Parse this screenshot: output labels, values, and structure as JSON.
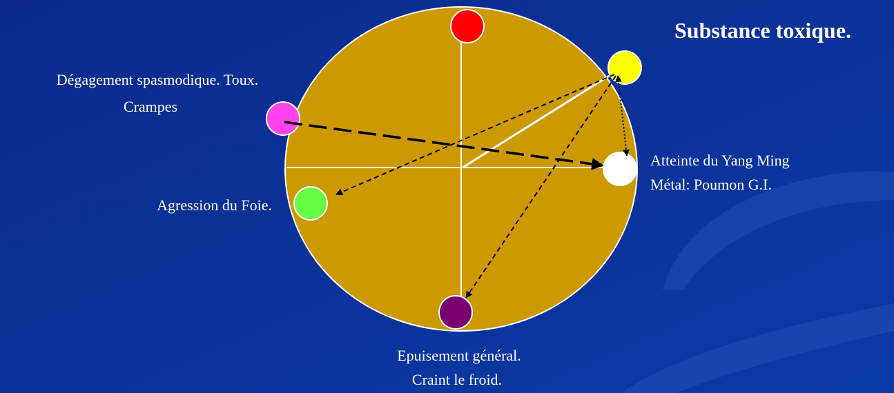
{
  "title": "Substance toxique.",
  "labels": {
    "magenta": [
      "Dégagement spasmodique. Toux.",
      "Crampes"
    ],
    "white": [
      "Atteinte du Yang Ming",
      "Métal: Poumon G.I."
    ],
    "green": [
      "Agression du Foie."
    ],
    "purple": [
      "Epuisement général.",
      "Craint le froid."
    ]
  }
}
